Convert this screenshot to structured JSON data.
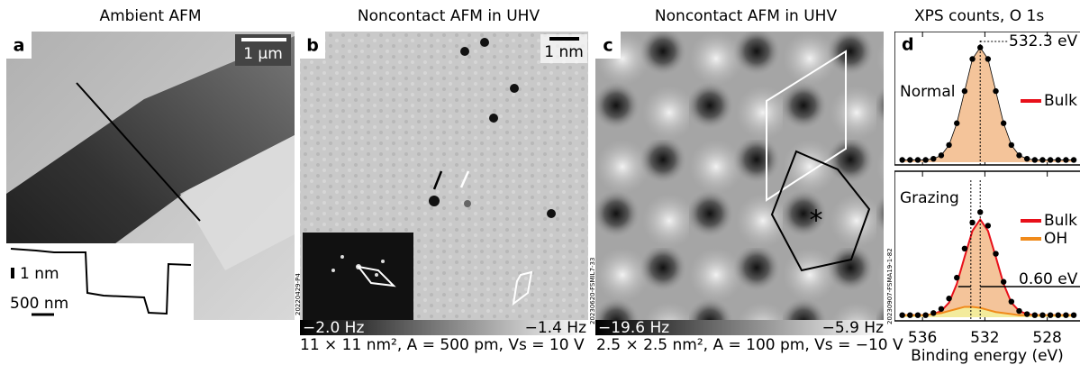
{
  "panels": [
    {
      "title": "Ambient AFM",
      "label": "a",
      "scale_bar": "1 µm",
      "inset_height": "1 nm",
      "inset_length": "500 nm",
      "file_id": "20220429-P4"
    },
    {
      "title": "Noncontact AFM in UHV",
      "label": "b",
      "scale_bar": "1 nm",
      "colorbar": [
        "−2.0 Hz",
        "−1.4 Hz"
      ],
      "caption": "11 × 11 nm², A = 500 pm, Vs = 10 V",
      "file_id": "20230620-FSMIL7-33"
    },
    {
      "title": "Noncontact AFM in UHV",
      "label": "c",
      "star": "*",
      "colorbar": [
        "−19.6 Hz",
        "−5.9 Hz"
      ],
      "caption": "2.5 × 2.5 nm², A = 100 pm, Vs = −10 V",
      "file_id": "20230907-FSMA19-1-82"
    },
    {
      "title": "XPS counts, O 1s",
      "label": "d",
      "chart_data": {
        "type": "line",
        "x": [
          537.3,
          536.8,
          536.3,
          535.8,
          535.3,
          534.8,
          534.3,
          533.8,
          533.3,
          532.8,
          532.3,
          531.8,
          531.3,
          530.8,
          530.3,
          529.8,
          529.3,
          528.8,
          528.3,
          527.8,
          527.3,
          526.8,
          526.3
        ],
        "xlim": [
          537.8,
          525.9
        ],
        "xticks": [
          536,
          532,
          528
        ],
        "xlabel": "Binding energy (eV)",
        "ylim": [
          0,
          1.1
        ],
        "subplots": [
          {
            "name": "Normal",
            "annotation": "532.3 eV",
            "peak_lines": [
              532.3
            ],
            "measured": [
              0.02,
              0.02,
              0.02,
              0.02,
              0.03,
              0.06,
              0.15,
              0.34,
              0.62,
              0.9,
              1.0,
              0.9,
              0.62,
              0.34,
              0.15,
              0.06,
              0.03,
              0.02,
              0.02,
              0.02,
              0.02,
              0.02,
              0.02
            ],
            "series": [
              {
                "name": "Bulk",
                "color": "#e8101a",
                "fill": "#f4c49a",
                "values": [
                  0.02,
                  0.02,
                  0.02,
                  0.02,
                  0.03,
                  0.06,
                  0.15,
                  0.34,
                  0.62,
                  0.9,
                  1.0,
                  0.9,
                  0.62,
                  0.34,
                  0.15,
                  0.06,
                  0.03,
                  0.02,
                  0.02,
                  0.02,
                  0.02,
                  0.02,
                  0.02
                ]
              }
            ]
          },
          {
            "name": "Grazing",
            "annotation": "0.60 eV",
            "peak_lines": [
              532.9,
              532.3
            ],
            "measured": [
              0.02,
              0.02,
              0.02,
              0.02,
              0.04,
              0.08,
              0.18,
              0.38,
              0.66,
              0.91,
              1.01,
              0.88,
              0.61,
              0.34,
              0.15,
              0.06,
              0.03,
              0.02,
              0.02,
              0.02,
              0.02,
              0.02,
              0.02
            ],
            "series": [
              {
                "name": "Bulk",
                "color": "#e8101a",
                "fill": "#f4c49a",
                "values": [
                  0.02,
                  0.02,
                  0.02,
                  0.02,
                  0.03,
                  0.06,
                  0.14,
                  0.32,
                  0.58,
                  0.83,
                  0.94,
                  0.83,
                  0.58,
                  0.32,
                  0.14,
                  0.06,
                  0.03,
                  0.02,
                  0.02,
                  0.02,
                  0.02,
                  0.02,
                  0.02
                ]
              },
              {
                "name": "OH",
                "color": "#f08a1a",
                "fill": "#f3eb9c",
                "values": [
                  0.02,
                  0.02,
                  0.02,
                  0.02,
                  0.03,
                  0.04,
                  0.06,
                  0.08,
                  0.1,
                  0.1,
                  0.09,
                  0.07,
                  0.05,
                  0.04,
                  0.03,
                  0.02,
                  0.02,
                  0.02,
                  0.02,
                  0.02,
                  0.02,
                  0.02,
                  0.02
                ]
              }
            ]
          }
        ]
      }
    }
  ]
}
